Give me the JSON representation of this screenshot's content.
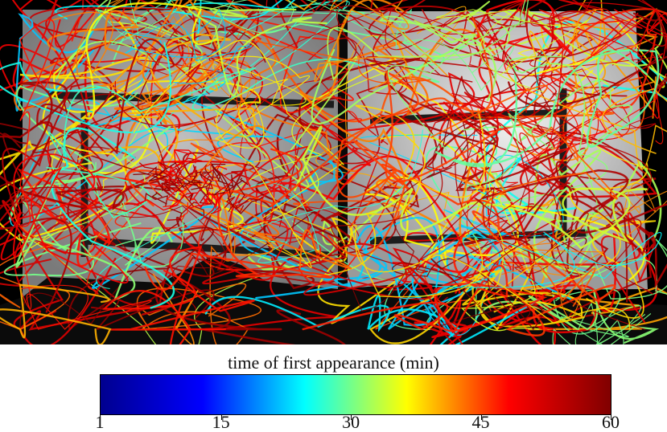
{
  "colorbar": {
    "title": "time of first appearance (min)",
    "min": 1,
    "max": 60,
    "ticks": [
      {
        "value": 1,
        "label": "1"
      },
      {
        "value": 15,
        "label": "15"
      },
      {
        "value": 30,
        "label": "30"
      },
      {
        "value": 45,
        "label": "45"
      },
      {
        "value": 60,
        "label": "60"
      }
    ],
    "colormap": [
      "#00008f",
      "#0000ff",
      "#00ffff",
      "#ffff00",
      "#ff0000",
      "#800000"
    ]
  }
}
